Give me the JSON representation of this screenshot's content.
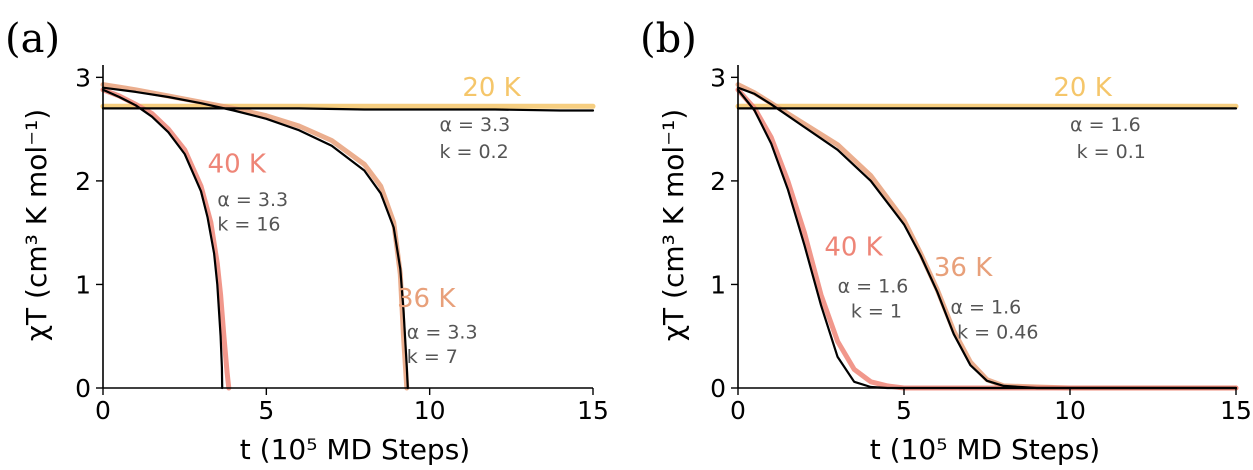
{
  "chart_data": [
    {
      "type": "line",
      "panel": "(a)",
      "xlabel": "t (10⁵ MD Steps)",
      "ylabel": "χT (cm³ K mol⁻¹)",
      "xlim": [
        0,
        15
      ],
      "ylim": [
        0,
        3.1
      ],
      "xticks": [
        0,
        5,
        10,
        15
      ],
      "yticks": [
        0,
        1,
        2,
        3
      ],
      "grid": false,
      "series": [
        {
          "name": "20 K",
          "color": "#f5c66a",
          "kind": "data",
          "x": [
            0,
            1,
            2,
            4,
            6,
            8,
            10,
            12,
            14,
            15
          ],
          "y": [
            2.72,
            2.72,
            2.72,
            2.72,
            2.72,
            2.72,
            2.72,
            2.72,
            2.72,
            2.72
          ]
        },
        {
          "name": "20 K fit",
          "color": "#000000",
          "kind": "fit",
          "x": [
            0,
            2,
            4,
            6,
            8,
            10,
            12,
            14,
            15
          ],
          "y": [
            2.7,
            2.7,
            2.7,
            2.7,
            2.69,
            2.69,
            2.69,
            2.68,
            2.68
          ]
        },
        {
          "name": "36 K",
          "color": "#e8a07a",
          "kind": "data",
          "x": [
            0,
            1,
            2,
            3,
            4,
            5,
            6,
            7,
            8,
            8.5,
            8.9,
            9.1,
            9.2,
            9.3
          ],
          "y": [
            2.93,
            2.88,
            2.82,
            2.76,
            2.7,
            2.63,
            2.53,
            2.39,
            2.16,
            1.95,
            1.6,
            1.1,
            0.5,
            0
          ]
        },
        {
          "name": "36 K fit",
          "color": "#000000",
          "kind": "fit",
          "x": [
            0,
            1,
            2,
            3,
            4,
            5,
            6,
            7,
            8,
            8.5,
            8.9,
            9.1,
            9.2,
            9.3,
            9.33
          ],
          "y": [
            2.9,
            2.86,
            2.81,
            2.75,
            2.68,
            2.6,
            2.49,
            2.34,
            2.1,
            1.88,
            1.55,
            1.15,
            0.75,
            0.2,
            0
          ]
        },
        {
          "name": "40 K",
          "color": "#ee8577",
          "kind": "data",
          "x": [
            0,
            0.5,
            1,
            1.5,
            2,
            2.5,
            3,
            3.3,
            3.5,
            3.6,
            3.7,
            3.8,
            3.85
          ],
          "y": [
            2.88,
            2.82,
            2.74,
            2.65,
            2.5,
            2.3,
            1.95,
            1.6,
            1.2,
            0.9,
            0.5,
            0.15,
            0
          ]
        },
        {
          "name": "40 K fit",
          "color": "#000000",
          "kind": "fit",
          "x": [
            0,
            0.5,
            1,
            1.5,
            2,
            2.5,
            3,
            3.2,
            3.4,
            3.5,
            3.6,
            3.64,
            3.65
          ],
          "y": [
            2.88,
            2.81,
            2.73,
            2.62,
            2.47,
            2.26,
            1.9,
            1.65,
            1.3,
            1.0,
            0.5,
            0.2,
            0
          ]
        }
      ],
      "annotations": [
        {
          "id": "t20",
          "text": "20 K",
          "color": "#f5c66a",
          "x": 11.0,
          "y": 2.82
        },
        {
          "id": "p20a",
          "text": "α = 3.3",
          "color": "#555555",
          "x": 10.3,
          "y": 2.48
        },
        {
          "id": "p20k",
          "text": "k = 0.2",
          "color": "#555555",
          "x": 10.3,
          "y": 2.22
        },
        {
          "id": "t40",
          "text": "40 K",
          "color": "#ee8577",
          "x": 3.2,
          "y": 2.08
        },
        {
          "id": "p40a",
          "text": "α = 3.3",
          "color": "#555555",
          "x": 3.5,
          "y": 1.76
        },
        {
          "id": "p40k",
          "text": "k = 16",
          "color": "#555555",
          "x": 3.5,
          "y": 1.52
        },
        {
          "id": "t36",
          "text": "36 K",
          "color": "#e8a07a",
          "x": 9.0,
          "y": 0.78
        },
        {
          "id": "p36a",
          "text": "α = 3.3",
          "color": "#555555",
          "x": 9.3,
          "y": 0.48
        },
        {
          "id": "p36k",
          "text": "k = 7",
          "color": "#555555",
          "x": 9.3,
          "y": 0.24
        }
      ]
    },
    {
      "type": "line",
      "panel": "(b)",
      "xlabel": "t (10⁵ MD Steps)",
      "ylabel": "χT (cm³ K mol⁻¹)",
      "xlim": [
        0,
        15
      ],
      "ylim": [
        0,
        3.1
      ],
      "xticks": [
        0,
        5,
        10,
        15
      ],
      "yticks": [
        0,
        1,
        2,
        3
      ],
      "grid": false,
      "series": [
        {
          "name": "20 K",
          "color": "#f5c66a",
          "kind": "data",
          "x": [
            0,
            1,
            2,
            4,
            6,
            8,
            10,
            12,
            14,
            15
          ],
          "y": [
            2.72,
            2.72,
            2.72,
            2.72,
            2.72,
            2.72,
            2.72,
            2.72,
            2.72,
            2.72
          ]
        },
        {
          "name": "20 K fit",
          "color": "#000000",
          "kind": "fit",
          "x": [
            0,
            3,
            6,
            9,
            12,
            15
          ],
          "y": [
            2.7,
            2.7,
            2.7,
            2.7,
            2.7,
            2.7
          ]
        },
        {
          "name": "36 K",
          "color": "#e8a07a",
          "kind": "data",
          "x": [
            0,
            0.5,
            1,
            1.5,
            2,
            3,
            4,
            5,
            5.5,
            6,
            6.5,
            7,
            7.5,
            8,
            9,
            10,
            12,
            15
          ],
          "y": [
            2.93,
            2.85,
            2.75,
            2.65,
            2.55,
            2.35,
            2.05,
            1.62,
            1.3,
            0.95,
            0.55,
            0.25,
            0.08,
            0.02,
            0.01,
            0,
            0,
            0
          ]
        },
        {
          "name": "36 K fit",
          "color": "#000000",
          "kind": "fit",
          "x": [
            0,
            0.5,
            1,
            1.5,
            2,
            3,
            4,
            5,
            5.5,
            6,
            6.5,
            7,
            7.5,
            8,
            9,
            10,
            12,
            15
          ],
          "y": [
            2.9,
            2.84,
            2.74,
            2.63,
            2.52,
            2.3,
            2.0,
            1.58,
            1.28,
            0.93,
            0.52,
            0.22,
            0.07,
            0.02,
            0,
            0,
            0,
            0
          ]
        },
        {
          "name": "40 K",
          "color": "#ee8577",
          "kind": "data",
          "x": [
            0,
            0.5,
            1,
            1.5,
            2,
            2.5,
            3,
            3.5,
            4,
            4.5,
            5,
            6,
            8,
            15
          ],
          "y": [
            2.88,
            2.7,
            2.42,
            2.0,
            1.5,
            0.9,
            0.45,
            0.18,
            0.06,
            0.02,
            0,
            0,
            0,
            0
          ]
        },
        {
          "name": "40 K fit",
          "color": "#000000",
          "kind": "fit",
          "x": [
            0,
            0.5,
            1,
            1.5,
            2,
            2.5,
            3,
            3.5,
            4,
            4.5,
            5,
            6,
            8,
            15
          ],
          "y": [
            2.88,
            2.68,
            2.36,
            1.92,
            1.38,
            0.8,
            0.3,
            0.06,
            0.01,
            0,
            0,
            0,
            0,
            0
          ]
        }
      ],
      "annotations": [
        {
          "id": "t20",
          "text": "20 K",
          "color": "#f5c66a",
          "x": 9.5,
          "y": 2.82
        },
        {
          "id": "p20a",
          "text": "α = 1.6",
          "color": "#555555",
          "x": 10.0,
          "y": 2.48
        },
        {
          "id": "p20k",
          "text": "k = 0.1",
          "color": "#555555",
          "x": 10.2,
          "y": 2.22
        },
        {
          "id": "t40",
          "text": "40 K",
          "color": "#ee8577",
          "x": 2.6,
          "y": 1.28
        },
        {
          "id": "p40a",
          "text": "α = 1.6",
          "color": "#555555",
          "x": 3.0,
          "y": 0.92
        },
        {
          "id": "p40k",
          "text": "k = 1",
          "color": "#555555",
          "x": 3.4,
          "y": 0.68
        },
        {
          "id": "t36",
          "text": "36 K",
          "color": "#e8a07a",
          "x": 5.9,
          "y": 1.08
        },
        {
          "id": "p36a",
          "text": "α = 1.6",
          "color": "#555555",
          "x": 6.4,
          "y": 0.72
        },
        {
          "id": "p36k",
          "text": "k = 0.46",
          "color": "#555555",
          "x": 6.6,
          "y": 0.48
        }
      ]
    }
  ]
}
